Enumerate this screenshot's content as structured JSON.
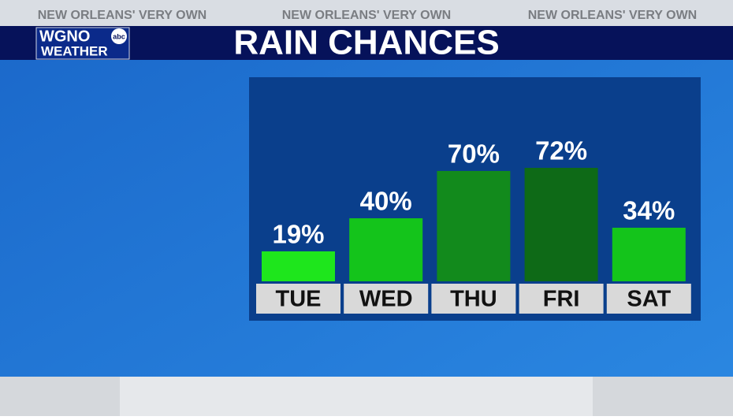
{
  "banner": [
    "NEW ORLEANS' VERY OWN",
    "NEW ORLEANS' VERY OWN",
    "NEW ORLEANS' VERY OWN"
  ],
  "logo": {
    "station": "WGNO",
    "network": "abc",
    "label": "WEATHER"
  },
  "chart_data": {
    "type": "bar",
    "title": "RAIN CHANCES",
    "categories": [
      "TUE",
      "WED",
      "THU",
      "FRI",
      "SAT"
    ],
    "values": [
      19,
      40,
      70,
      72,
      34
    ],
    "value_labels": [
      "19%",
      "40%",
      "70%",
      "72%",
      "34%"
    ],
    "colors": [
      "#1ee61c",
      "#14c41b",
      "#128a1c",
      "#0e6a17",
      "#14c41b"
    ],
    "ylim": [
      0,
      100
    ]
  }
}
